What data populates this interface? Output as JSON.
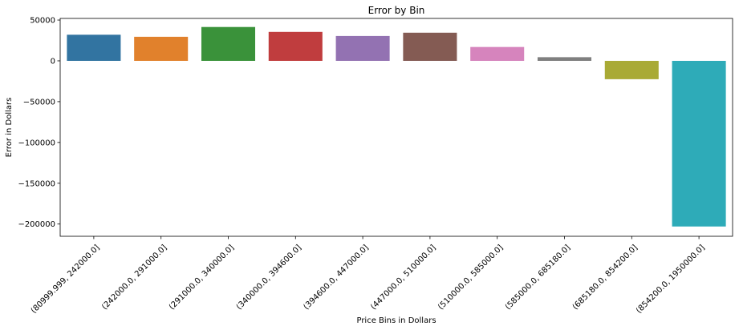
{
  "chart_data": {
    "type": "bar",
    "title": "Error by Bin",
    "xlabel": "Price Bins in Dollars",
    "ylabel": "Error in Dollars",
    "categories": [
      "(80999.999, 242000.0]",
      "(242000.0, 291000.0]",
      "(291000.0, 340000.0]",
      "(340000.0, 394600.0]",
      "(394600.0, 447000.0]",
      "(447000.0, 510000.0]",
      "(510000.0, 585000.0]",
      "(585000.0, 685180.0]",
      "(685180.0, 854200.0]",
      "(854200.0, 1950000.0]"
    ],
    "values": [
      32000,
      29500,
      41500,
      35500,
      30500,
      34500,
      17000,
      4500,
      -22500,
      -203000
    ],
    "colors": [
      "#3274a1",
      "#e1812c",
      "#3a923a",
      "#c03d3e",
      "#9372b2",
      "#845b53",
      "#d684bd",
      "#7f7f7f",
      "#a9aa35",
      "#2eabb8"
    ],
    "ylim": [
      -215000,
      52000
    ],
    "yticks": [
      50000,
      0,
      -50000,
      -100000,
      -150000,
      -200000
    ],
    "ytick_labels": [
      "50000",
      "0",
      "−50000",
      "−100000",
      "−150000",
      "−200000"
    ],
    "grid": false,
    "legend": false
  }
}
